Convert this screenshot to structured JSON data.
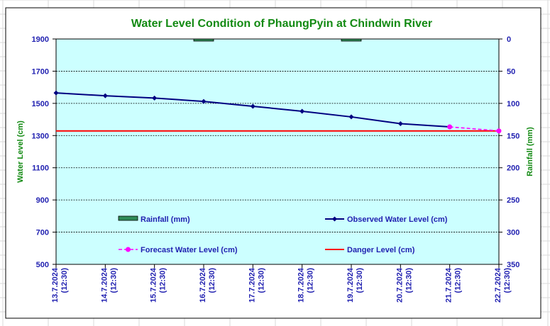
{
  "colors": {
    "plot_bg": "#ccffff",
    "observed": "#000080",
    "forecast": "#ff00ff",
    "danger": "#ff0000",
    "rainfall": "#2e8b57",
    "title": "#138a13",
    "tick": "#1f1fb0",
    "grid": "#000000"
  },
  "chart_data": {
    "type": "line",
    "title": "Water Level Condition of PhaungPyin at Chindwin River",
    "ylabel": "Water Level (cm)",
    "y2label": "Rainfall (mm)",
    "ylim": [
      500,
      1900
    ],
    "y_ticks": [
      500,
      700,
      900,
      1100,
      1300,
      1500,
      1700,
      1900
    ],
    "y2lim": [
      0,
      350
    ],
    "y2_inverted": true,
    "y2_ticks": [
      0,
      50,
      100,
      150,
      200,
      250,
      300,
      350
    ],
    "categories": [
      [
        "13.7.2024",
        "(12:30)"
      ],
      [
        "14.7.2024",
        "(12:30)"
      ],
      [
        "15.7.2024",
        "(12:30)"
      ],
      [
        "16.7.2024",
        "(12:30)"
      ],
      [
        "17.7.2024",
        "(12:30)"
      ],
      [
        "18.7.2024",
        "(12:30)"
      ],
      [
        "19.7.2024",
        "(12:30)"
      ],
      [
        "20.7.2024",
        "(12:30)"
      ],
      [
        "21.7.2024",
        "(12:30)"
      ],
      [
        "22.7.2024",
        "(12:30)"
      ]
    ],
    "grid": true,
    "legend_position": "inside-bottom",
    "series": [
      {
        "name": "Observed Water Level (cm)",
        "type": "line",
        "marker": "diamond",
        "values": [
          1565,
          1547,
          1533,
          1512,
          1482,
          1451,
          1416,
          1374,
          1354,
          null
        ]
      },
      {
        "name": "Forecast Water Level (cm)",
        "type": "line-dashed",
        "marker": "circle",
        "values": [
          null,
          null,
          null,
          null,
          null,
          null,
          null,
          null,
          1354,
          1329
        ]
      },
      {
        "name": "Danger Level (cm)",
        "type": "line",
        "values": [
          1329,
          1329,
          1329,
          1329,
          1329,
          1329,
          1329,
          1329,
          1329,
          1329
        ]
      },
      {
        "name": "Rainfall (mm)",
        "type": "bar",
        "axis": "y2",
        "values": [
          0,
          0,
          0,
          1,
          0,
          0,
          1,
          0,
          0,
          0
        ]
      }
    ]
  }
}
